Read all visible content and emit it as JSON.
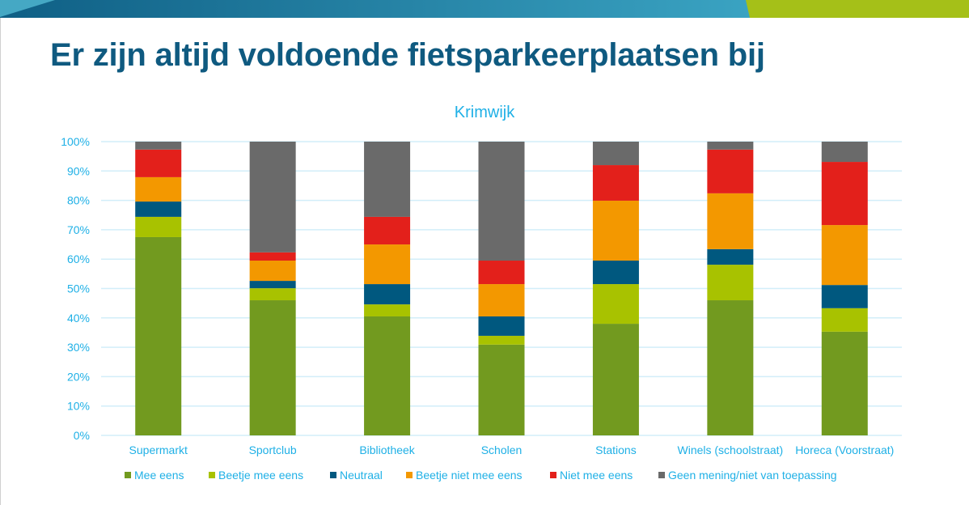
{
  "slide": {
    "title": "Er zijn altijd voldoende fietsparkeerplaatsen bij",
    "banner_colors": [
      "#45a8c4",
      "#0f5f85",
      "#3aa3c2",
      "#a5c018"
    ]
  },
  "chart_data": {
    "type": "bar",
    "stacked": true,
    "percent": true,
    "title": "Krimwijk",
    "xlabel": "",
    "ylabel": "",
    "ylim": [
      0,
      100
    ],
    "y_ticks": [
      "0%",
      "10%",
      "20%",
      "30%",
      "40%",
      "50%",
      "60%",
      "70%",
      "80%",
      "90%",
      "100%"
    ],
    "grid": true,
    "legend_position": "bottom",
    "categories": [
      "Supermarkt",
      "Sportclub",
      "Bibliotheek",
      "Scholen",
      "Stations",
      "Winels (schoolstraat)",
      "Horeca (Voorstraat)"
    ],
    "series": [
      {
        "name": "Mee eens",
        "color": "#729a1f",
        "values": [
          67.5,
          46.0,
          40.5,
          30.9,
          38.0,
          46.0,
          35.3
        ]
      },
      {
        "name": "Beetje mee eens",
        "color": "#a8c200",
        "values": [
          6.9,
          4.1,
          4.1,
          3.0,
          13.5,
          12.1,
          8.0
        ]
      },
      {
        "name": "Neutraal",
        "color": "#00587f",
        "values": [
          5.2,
          2.5,
          6.9,
          6.6,
          8.0,
          5.3,
          7.9
        ]
      },
      {
        "name": "Beetje niet mee eens",
        "color": "#f39800",
        "values": [
          8.3,
          6.9,
          13.5,
          11.0,
          20.4,
          19.0,
          20.4
        ]
      },
      {
        "name": "Niet mee eens",
        "color": "#e3201b",
        "values": [
          9.4,
          2.8,
          9.4,
          8.0,
          12.1,
          14.9,
          21.5
        ]
      },
      {
        "name": "Geen mening/niet van toepassing",
        "color": "#6a6a6a",
        "values": [
          2.7,
          37.7,
          25.6,
          40.5,
          8.0,
          2.7,
          6.9
        ]
      }
    ]
  }
}
